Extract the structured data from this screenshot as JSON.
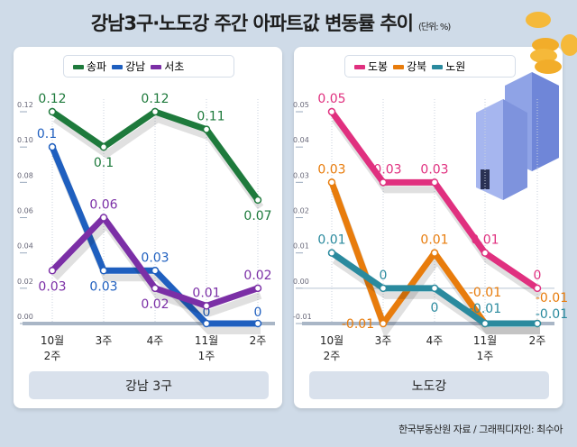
{
  "title": "강남3구·노도강 주간 아파트값 변동률 추이",
  "unit": "(단위: %)",
  "source": "한국부동산원 자료 / 그래픽디자인: 최수아",
  "chart_data": [
    {
      "type": "line",
      "group_label": "강남 3구",
      "categories": [
        "10월\n2주",
        "3주",
        "4주",
        "11월\n1주",
        "2주"
      ],
      "yticks": [
        "0.12",
        "0.10",
        "0.08",
        "0.06",
        "0.04",
        "0.02",
        "0.00"
      ],
      "ylim": [
        0,
        0.12
      ],
      "series": [
        {
          "name": "송파",
          "color": "#1e7a3c",
          "values": [
            0.12,
            0.1,
            0.12,
            0.11,
            0.07
          ],
          "labels": [
            "0.12",
            "0.1",
            "0.12",
            "0.11",
            "0.07"
          ]
        },
        {
          "name": "강남",
          "color": "#1f5fbf",
          "values": [
            0.1,
            0.03,
            0.03,
            0,
            0
          ],
          "labels": [
            "0.1",
            "0.03",
            "0.03",
            "0",
            "0"
          ]
        },
        {
          "name": "서초",
          "color": "#7b2fa6",
          "values": [
            0.03,
            0.06,
            0.02,
            0.01,
            0.02
          ],
          "labels": [
            "0.03",
            "0.06",
            "0.02",
            "0.01",
            "0.02"
          ]
        }
      ]
    },
    {
      "type": "line",
      "group_label": "노도강",
      "categories": [
        "10월\n2주",
        "3주",
        "4주",
        "11월\n1주",
        "2주"
      ],
      "yticks": [
        "0.05",
        "0.04",
        "0.03",
        "0.02",
        "0.01",
        "0.00",
        "-0.01"
      ],
      "ylim": [
        -0.01,
        0.05
      ],
      "series": [
        {
          "name": "도봉",
          "color": "#e0307f",
          "values": [
            0.05,
            0.03,
            0.03,
            0.01,
            0
          ],
          "labels": [
            "0.05",
            "0.03",
            "0.03",
            "0.01",
            "0"
          ]
        },
        {
          "name": "강북",
          "color": "#e87c0c",
          "values": [
            0.03,
            -0.01,
            0.01,
            -0.01,
            -0.01
          ],
          "labels": [
            "0.03",
            "-0.01",
            "0.01",
            "-0.01",
            "-0.01"
          ]
        },
        {
          "name": "노원",
          "color": "#2a8a9e",
          "values": [
            0.01,
            0,
            0,
            -0.01,
            -0.01
          ],
          "labels": [
            "0.01",
            "0",
            "0",
            "-0.01",
            "-0.01"
          ]
        }
      ]
    }
  ]
}
